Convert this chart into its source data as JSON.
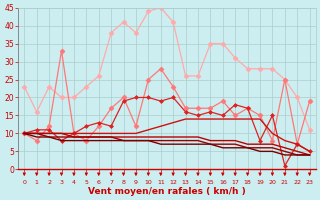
{
  "xlabel": "Vent moyen/en rafales ( km/h )",
  "x": [
    0,
    1,
    2,
    3,
    4,
    5,
    6,
    7,
    8,
    9,
    10,
    11,
    12,
    13,
    14,
    15,
    16,
    17,
    18,
    19,
    20,
    21,
    22,
    23
  ],
  "series": [
    {
      "color": "#ffaaaa",
      "marker": "D",
      "markersize": 2.5,
      "linewidth": 0.9,
      "y": [
        23,
        16,
        23,
        20,
        20,
        23,
        26,
        38,
        41,
        38,
        44,
        45,
        41,
        26,
        26,
        35,
        35,
        31,
        28,
        28,
        28,
        25,
        20,
        11
      ]
    },
    {
      "color": "#ff7777",
      "marker": "D",
      "markersize": 2.5,
      "linewidth": 0.9,
      "y": [
        10,
        8,
        12,
        33,
        10,
        8,
        12,
        17,
        20,
        12,
        25,
        28,
        23,
        17,
        17,
        17,
        19,
        15,
        17,
        15,
        8,
        25,
        7,
        19
      ]
    },
    {
      "color": "#dd2222",
      "marker": "D",
      "markersize": 2.0,
      "linewidth": 0.9,
      "y": [
        10,
        11,
        11,
        8,
        10,
        12,
        13,
        12,
        19,
        20,
        20,
        19,
        20,
        16,
        15,
        16,
        15,
        18,
        17,
        8,
        15,
        1,
        7,
        5
      ]
    },
    {
      "color": "#cc1111",
      "marker": null,
      "markersize": 0,
      "linewidth": 1.0,
      "y": [
        10,
        10,
        10,
        10,
        10,
        10,
        10,
        10,
        10,
        10,
        11,
        12,
        13,
        14,
        14,
        14,
        14,
        14,
        14,
        14,
        10,
        8,
        7,
        5
      ]
    },
    {
      "color": "#bb0000",
      "marker": null,
      "markersize": 0,
      "linewidth": 1.0,
      "y": [
        10,
        10,
        10,
        10,
        9,
        9,
        9,
        9,
        9,
        9,
        9,
        9,
        9,
        9,
        9,
        8,
        8,
        8,
        7,
        7,
        7,
        6,
        5,
        4
      ]
    },
    {
      "color": "#990000",
      "marker": null,
      "markersize": 0,
      "linewidth": 1.0,
      "y": [
        10,
        10,
        9,
        9,
        9,
        9,
        9,
        9,
        8,
        8,
        8,
        8,
        8,
        8,
        8,
        7,
        7,
        7,
        6,
        6,
        6,
        5,
        4,
        4
      ]
    },
    {
      "color": "#770000",
      "marker": null,
      "markersize": 0,
      "linewidth": 1.0,
      "y": [
        10,
        9,
        9,
        8,
        8,
        8,
        8,
        8,
        8,
        8,
        8,
        7,
        7,
        7,
        7,
        7,
        6,
        6,
        6,
        5,
        5,
        4,
        4,
        4
      ]
    }
  ],
  "ylim": [
    0,
    45
  ],
  "yticks": [
    0,
    5,
    10,
    15,
    20,
    25,
    30,
    35,
    40,
    45
  ],
  "xlim": [
    -0.5,
    23.5
  ],
  "bg_color": "#cceef0",
  "grid_color": "#aacccc",
  "tick_color": "#cc0000",
  "label_color": "#cc0000"
}
